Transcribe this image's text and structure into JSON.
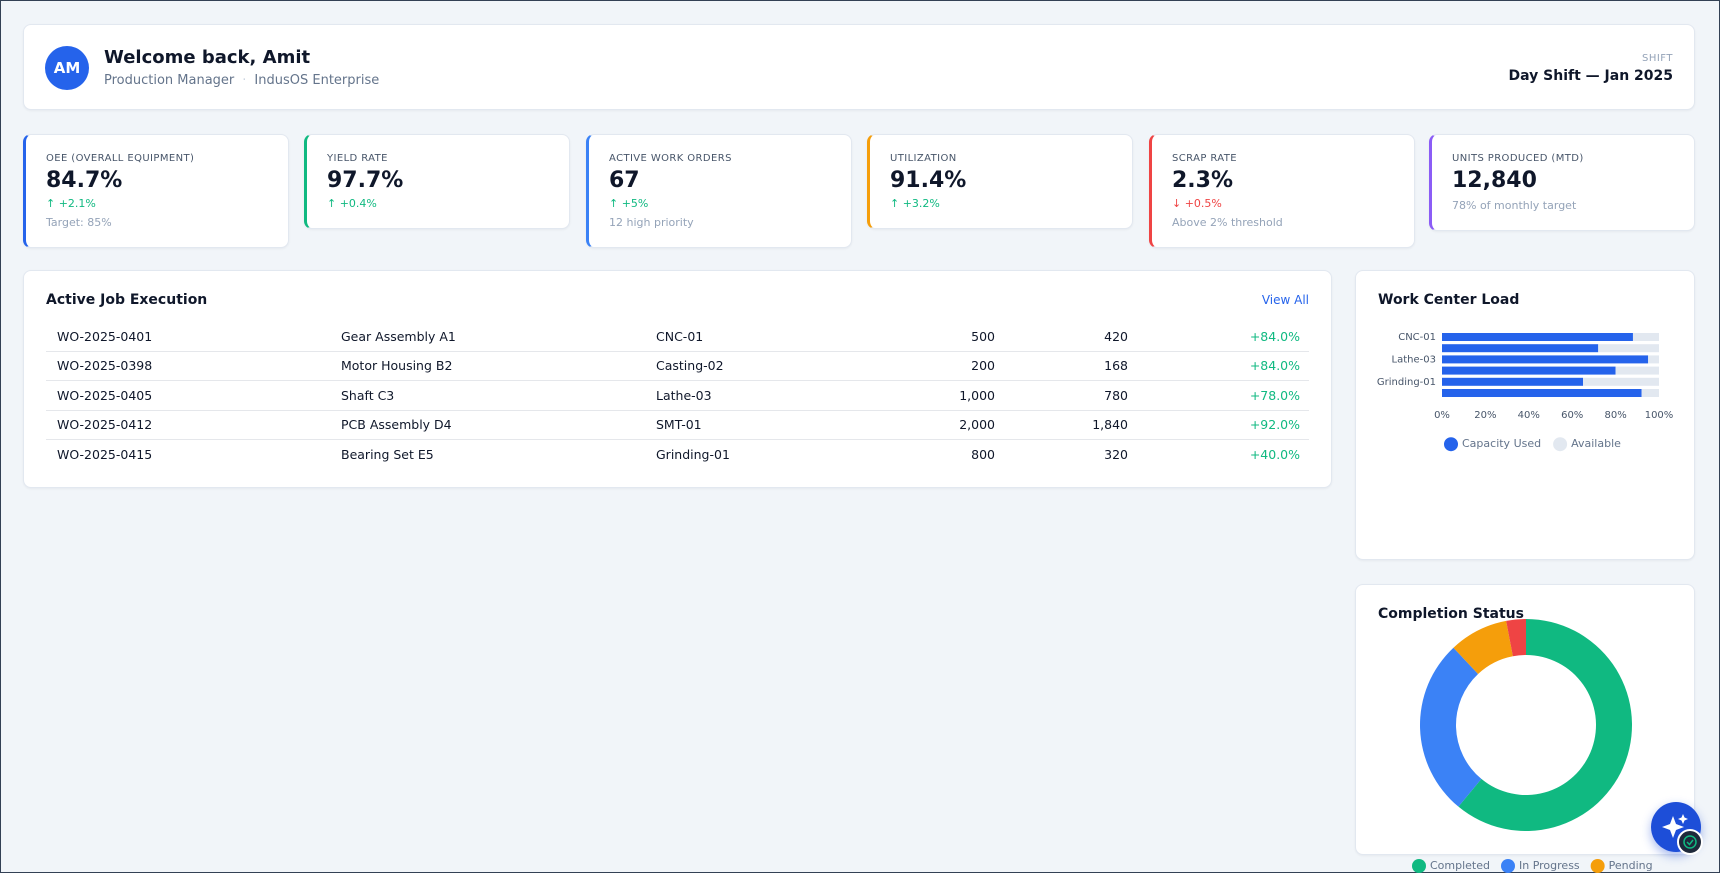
{
  "header": {
    "avatar": "AM",
    "title": "Welcome back, Amit",
    "role": "Production Manager",
    "separator": "·",
    "org": "IndusOS Enterprise",
    "shift_label": "SHIFT",
    "shift": "Day Shift — Jan 2025"
  },
  "kpis": [
    {
      "label": "OEE (OVERALL EQUIPMENT)",
      "value": "84.7%",
      "change": "↑ +2.1%",
      "trend": "up",
      "note": "Target: 85%",
      "color": "#2563eb"
    },
    {
      "label": "YIELD RATE",
      "value": "97.7%",
      "change": "↑ +0.4%",
      "trend": "up",
      "color": "#10b981"
    },
    {
      "label": "ACTIVE WORK ORDERS",
      "value": "67",
      "change": "↑ +5%",
      "trend": "up",
      "note": "12 high priority",
      "color": "#3b82f6"
    },
    {
      "label": "UTILIZATION",
      "value": "91.4%",
      "change": "↑ +3.2%",
      "trend": "up",
      "color": "#f59e0b"
    },
    {
      "label": "SCRAP RATE",
      "value": "2.3%",
      "change": "↓ +0.5%",
      "trend": "down",
      "note": "Above 2% threshold",
      "color": "#ef4444"
    },
    {
      "label": "UNITS PRODUCED (MTD)",
      "value": "12,840",
      "note": "78% of monthly target",
      "color": "#8b5cf6"
    }
  ],
  "table": {
    "title": "Active Job Execution",
    "action": "View All",
    "rows": [
      [
        "WO-2025-0401",
        "Gear Assembly A1",
        "CNC-01",
        "500",
        "420",
        "+84.0%"
      ],
      [
        "WO-2025-0398",
        "Motor Housing B2",
        "Casting-02",
        "200",
        "168",
        "+84.0%"
      ],
      [
        "WO-2025-0405",
        "Shaft C3",
        "Lathe-03",
        "1,000",
        "780",
        "+78.0%"
      ],
      [
        "WO-2025-0412",
        "PCB Assembly D4",
        "SMT-01",
        "2,000",
        "1,840",
        "+92.0%"
      ],
      [
        "WO-2025-0415",
        "Bearing Set E5",
        "Grinding-01",
        "800",
        "320",
        "+40.0%"
      ]
    ]
  },
  "chart_data": [
    {
      "type": "bar",
      "orientation": "horizontal",
      "stacked": true,
      "title": "Work Center Load",
      "categories": [
        "CNC-01",
        null,
        "Lathe-03",
        null,
        "Grinding-01",
        null
      ],
      "series": [
        {
          "name": "Capacity Used",
          "color": "#2563eb",
          "values": [
            88,
            72,
            95,
            80,
            65,
            92
          ]
        },
        {
          "name": "Available",
          "color": "#e2e8f0",
          "values": [
            12,
            28,
            5,
            20,
            35,
            8
          ]
        }
      ],
      "xlim": [
        0,
        100
      ],
      "xticks": [
        {
          "value": 0,
          "label": "0%"
        },
        {
          "value": 20,
          "label": "20%"
        },
        {
          "value": 40,
          "label": "40%"
        },
        {
          "value": 60,
          "label": "60%"
        },
        {
          "value": 80,
          "label": "80%"
        },
        {
          "value": 100,
          "label": "100%"
        }
      ],
      "legend": "bottom"
    },
    {
      "type": "donut",
      "title": "Completion Status",
      "categories": [
        "Completed",
        "In Progress",
        "Pending",
        null
      ],
      "values": [
        61,
        27,
        9,
        3
      ],
      "colors": [
        "#10b981",
        "#3b82f6",
        "#f59e0b",
        "#ef4444"
      ],
      "legend": "bottom"
    }
  ]
}
